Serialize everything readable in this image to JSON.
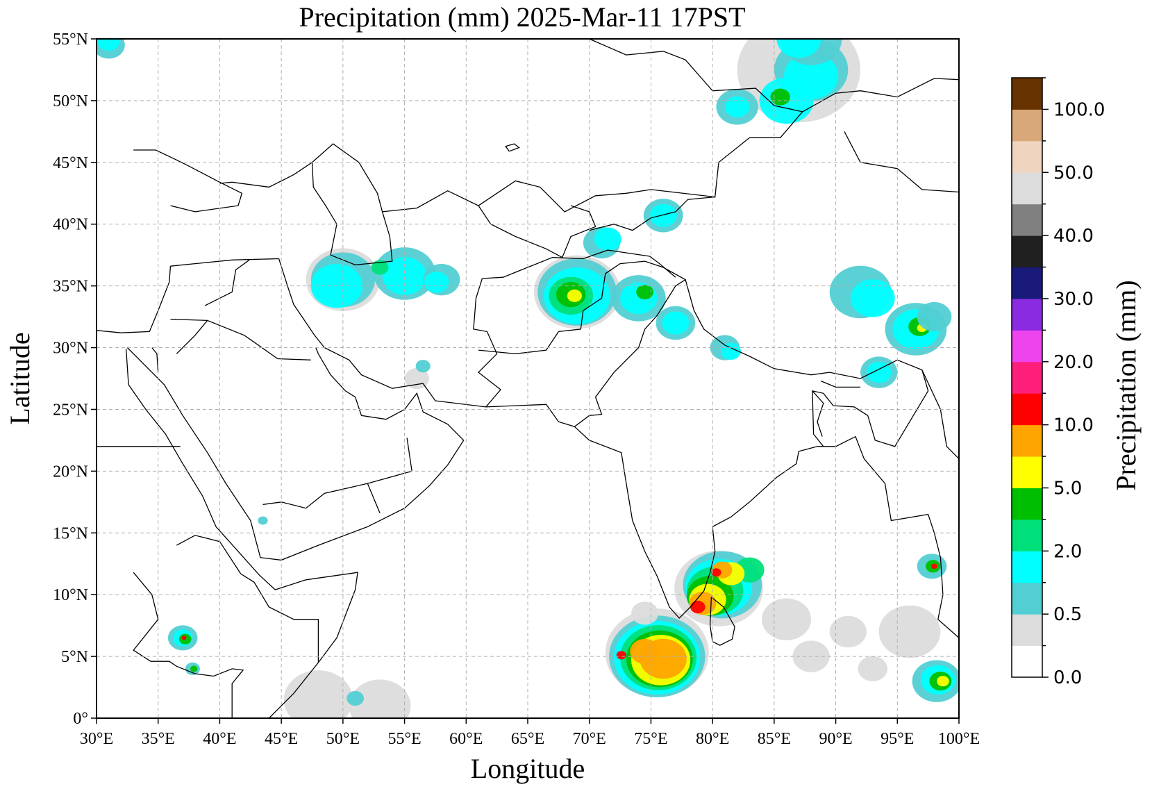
{
  "title": "Precipitation (mm)  2025-Mar-11 17PST",
  "xlabel": "Longitude",
  "ylabel": "Latitude",
  "colorbar_label": "Precipitation (mm)",
  "x_ticks": [
    "30°E",
    "35°E",
    "40°E",
    "45°E",
    "50°E",
    "55°E",
    "60°E",
    "65°E",
    "70°E",
    "75°E",
    "80°E",
    "85°E",
    "90°E",
    "95°E",
    "100°E"
  ],
  "y_ticks": [
    "0°",
    "5°N",
    "10°N",
    "15°N",
    "20°N",
    "25°N",
    "30°N",
    "35°N",
    "40°N",
    "45°N",
    "50°N",
    "55°N"
  ],
  "colorbar_ticks": [
    "0.0",
    "0.5",
    "2.0",
    "5.0",
    "10.0",
    "20.0",
    "30.0",
    "40.0",
    "50.0",
    "100.0"
  ],
  "colorbar_colors": [
    "#ffffff",
    "#dcdcdc",
    "#52cfd3",
    "#00ffff",
    "#00e07a",
    "#00bf00",
    "#ffff00",
    "#ffa500",
    "#ff0000",
    "#ff1f7a",
    "#ee44ee",
    "#8a2be2",
    "#1a1a7a",
    "#202020",
    "#808080",
    "#dcdcdc",
    "#efd5c0",
    "#d9a87a",
    "#663300"
  ],
  "colors": {
    "light_gray": "#dcdcdc",
    "teal": "#52cfd3",
    "cyan": "#00ffff",
    "green_light": "#00e07a",
    "green": "#00bf00",
    "yellow": "#ffff00",
    "orange": "#ffa500",
    "red": "#ff0000",
    "boundary": "#000000"
  },
  "map": {
    "lon_range": [
      30,
      100
    ],
    "lat_range": [
      0,
      55
    ],
    "grid": true
  }
}
